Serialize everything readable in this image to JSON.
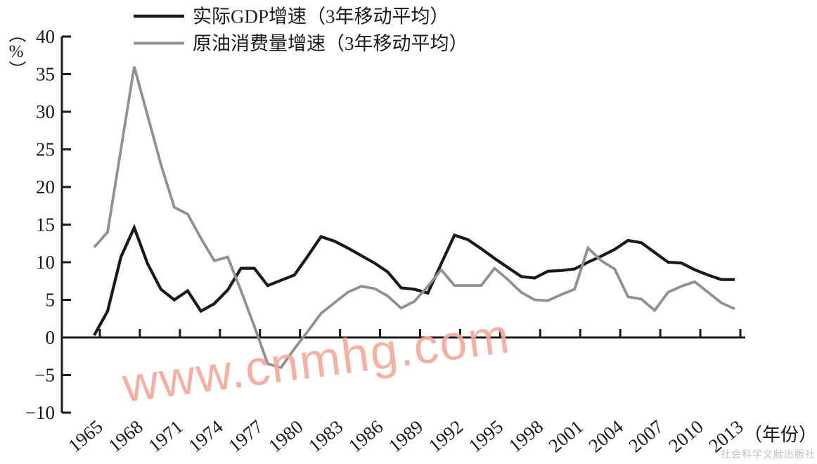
{
  "figure": {
    "watermark_text": "www.cnmhg.com",
    "watermark_color": "#f5a89b",
    "publisher_text": "社会科学文献出版社"
  },
  "y_axis_unit": {
    "text": "（%）",
    "parts": [
      "（",
      "%",
      "）"
    ]
  },
  "x_axis_unit": {
    "text": "（年份）"
  },
  "chart_data": {
    "type": "line",
    "title": "",
    "ylabel": "（%）",
    "xlabel": "（年份）",
    "ylim": [
      -10,
      40
    ],
    "ytick_step": 5,
    "yticks": [
      40,
      35,
      30,
      25,
      20,
      15,
      10,
      5,
      0,
      -5,
      -10
    ],
    "grid": false,
    "legend_position": "top-left",
    "axis_color": "#1a1a1a",
    "xtick_years": [
      1965,
      1968,
      1971,
      1974,
      1977,
      1980,
      1983,
      1986,
      1989,
      1992,
      1995,
      1998,
      2001,
      2004,
      2007,
      2010,
      2013
    ],
    "x": [
      1965,
      1966,
      1967,
      1968,
      1969,
      1970,
      1971,
      1972,
      1973,
      1974,
      1975,
      1976,
      1977,
      1978,
      1979,
      1980,
      1981,
      1982,
      1983,
      1984,
      1985,
      1986,
      1987,
      1988,
      1989,
      1990,
      1991,
      1992,
      1993,
      1994,
      1995,
      1996,
      1997,
      1998,
      1999,
      2000,
      2001,
      2002,
      2003,
      2004,
      2005,
      2006,
      2007,
      2008,
      2009,
      2010,
      2011,
      2012,
      2013
    ],
    "series": [
      {
        "name": "实际GDP增速（3年移动平均）",
        "color": "#1a1a1a",
        "line_width": 4.2,
        "values": [
          0.3,
          3.5,
          10.7,
          14.6,
          9.8,
          6.4,
          5.0,
          6.2,
          3.5,
          4.5,
          6.3,
          9.2,
          9.2,
          6.9,
          7.6,
          8.3,
          10.8,
          13.4,
          12.8,
          11.9,
          10.9,
          9.9,
          8.7,
          6.6,
          6.4,
          5.9,
          9.8,
          13.6,
          13.0,
          11.8,
          10.5,
          9.3,
          8.1,
          7.9,
          8.8,
          8.9,
          9.1,
          10.0,
          10.8,
          11.7,
          12.9,
          12.6,
          11.3,
          10.0,
          9.9,
          9.0,
          8.3,
          7.7,
          7.7
        ]
      },
      {
        "name": "原油消费量增速（3年移动平均）",
        "color": "#909090",
        "line_width": 3.8,
        "values": [
          12.0,
          14.0,
          25.0,
          36.0,
          29.5,
          23.0,
          17.3,
          16.4,
          13.2,
          10.2,
          10.7,
          6.2,
          1.5,
          -3.5,
          -4.0,
          -1.5,
          0.8,
          3.2,
          4.6,
          6.0,
          6.8,
          6.5,
          5.5,
          3.9,
          4.8,
          6.8,
          9.0,
          6.9,
          6.9,
          6.9,
          9.2,
          7.7,
          6.0,
          5.0,
          4.9,
          5.7,
          6.4,
          11.9,
          10.2,
          9.1,
          5.4,
          5.1,
          3.6,
          6.0,
          6.8,
          7.4,
          6.0,
          4.6,
          3.8
        ]
      }
    ]
  }
}
